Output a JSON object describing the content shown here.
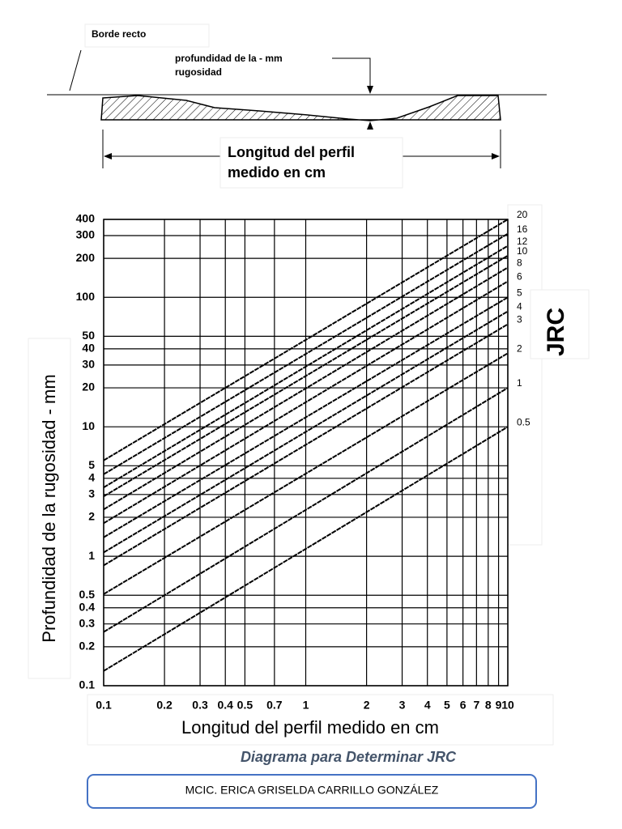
{
  "header": {
    "edge_label": "Borde recto",
    "depth_label": [
      "profundidad de la - mm",
      "rugosidad"
    ],
    "length_label": [
      "Longitud del perfil",
      "medido en cm"
    ]
  },
  "chart_data": {
    "type": "line",
    "y_label": "Profundidad de la rugosidad - mm",
    "x_label": "Longitud del perfil medido en cm",
    "legend_title": "JRC",
    "log_x": true,
    "log_y": true,
    "grid": true,
    "color": "#000000",
    "x": [
      0.1,
      10
    ],
    "series": [
      {
        "name": "20",
        "values": [
          5.5,
          400
        ]
      },
      {
        "name": "16",
        "values": [
          4.3,
          310
        ]
      },
      {
        "name": "12",
        "values": [
          3.4,
          250
        ]
      },
      {
        "name": "10",
        "values": [
          2.9,
          210
        ]
      },
      {
        "name": "8",
        "values": [
          2.3,
          170
        ]
      },
      {
        "name": "6",
        "values": [
          1.8,
          133
        ]
      },
      {
        "name": "5",
        "values": [
          1.4,
          100
        ]
      },
      {
        "name": "4",
        "values": [
          1.07,
          78
        ]
      },
      {
        "name": "3",
        "values": [
          0.85,
          62
        ]
      },
      {
        "name": "2",
        "values": [
          0.51,
          37
        ]
      },
      {
        "name": "1",
        "values": [
          0.26,
          20
        ]
      },
      {
        "name": "0.5",
        "values": [
          0.13,
          10
        ]
      }
    ],
    "xlim": [
      0.1,
      10
    ],
    "xticks": [
      0.1,
      0.2,
      0.3,
      0.4,
      0.5,
      0.7,
      1,
      2,
      3,
      4,
      5,
      6,
      7,
      8,
      9,
      10
    ],
    "ylim": [
      0.1,
      400
    ],
    "yticks": [
      0.1,
      0.2,
      0.3,
      0.4,
      0.5,
      1,
      2,
      3,
      4,
      5,
      10,
      20,
      30,
      40,
      50,
      100,
      200,
      300,
      400
    ]
  },
  "caption": "Diagrama para Determinar JRC",
  "author": "MCIC. ERICA GRISELDA CARRILLO GONZÁLEZ"
}
